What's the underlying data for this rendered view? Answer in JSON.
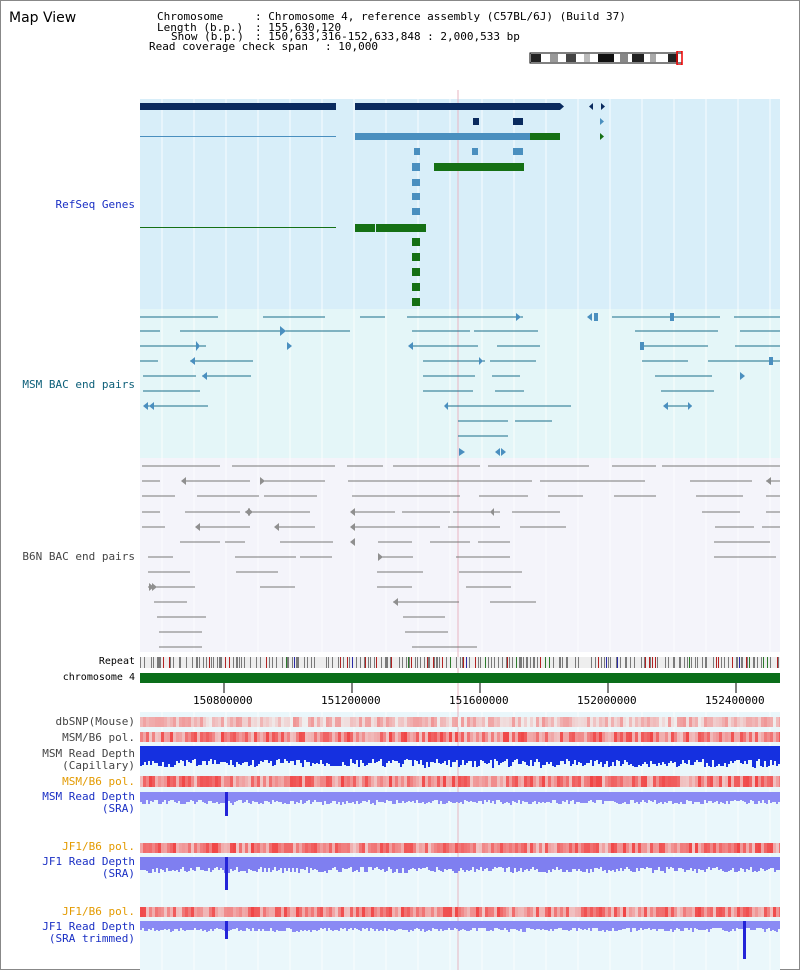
{
  "header": {
    "title": "Map View",
    "chromosome_key": "Chromosome",
    "chromosome_val": ": Chromosome 4, reference assembly (C57BL/6J) (Build 37)",
    "length_key": "Length (b.p.)",
    "length_val": ": 155,630,120",
    "show_key": "Show (b.p.)",
    "show_val": ": 150,633,316-152,633,848 : 2,000,533 bp",
    "coverage_key": "Read coverage check span",
    "coverage_val": ": 10,000"
  },
  "tracks": {
    "refseq": "RefSeq Genes",
    "msm_bac": "MSM BAC end pairs",
    "b6n_bac": "B6N BAC end pairs",
    "repeat": "Repeat",
    "chromosome": "chromosome 4",
    "dbsnp": "dbSNP(Mouse)",
    "msm_b6_pol": "MSM/B6 pol.",
    "msm_read_depth_cap_1": "MSM Read Depth",
    "msm_read_depth_cap_2": "(Capillary)",
    "msm_b6_pol_2": "MSM/B6 pol.",
    "msm_read_depth_sra_1": "MSM Read Depth",
    "msm_read_depth_sra_2": "(SRA)",
    "jf1_b6_pol": "JF1/B6 pol.",
    "jf1_read_depth_sra_1": "JF1 Read Depth",
    "jf1_read_depth_sra_2": "(SRA)",
    "jf1_b6_pol_2": "JF1/B6 pol.",
    "jf1_read_depth_trim_1": "JF1 Read Depth",
    "jf1_read_depth_trim_2": "(SRA trimmed)"
  },
  "axis": {
    "ticks": [
      "150800000",
      "151200000",
      "151600000",
      "152000000",
      "152400000"
    ]
  },
  "colors": {
    "refseq_bg": "#d8eef9",
    "msm_bg": "#e4f6f8",
    "b6n_bg": "#f4f4fa",
    "gene_dark": "#0a2a5e",
    "gene_mid": "#4a8fbf",
    "gene_green": "#157015",
    "msm_line": "#1a6f8a",
    "b6n_line": "#777777",
    "label_blue": "#1a2fc4",
    "label_msm": "#0b5e78",
    "label_orange": "#e39a00",
    "label_gray": "#444444"
  }
}
